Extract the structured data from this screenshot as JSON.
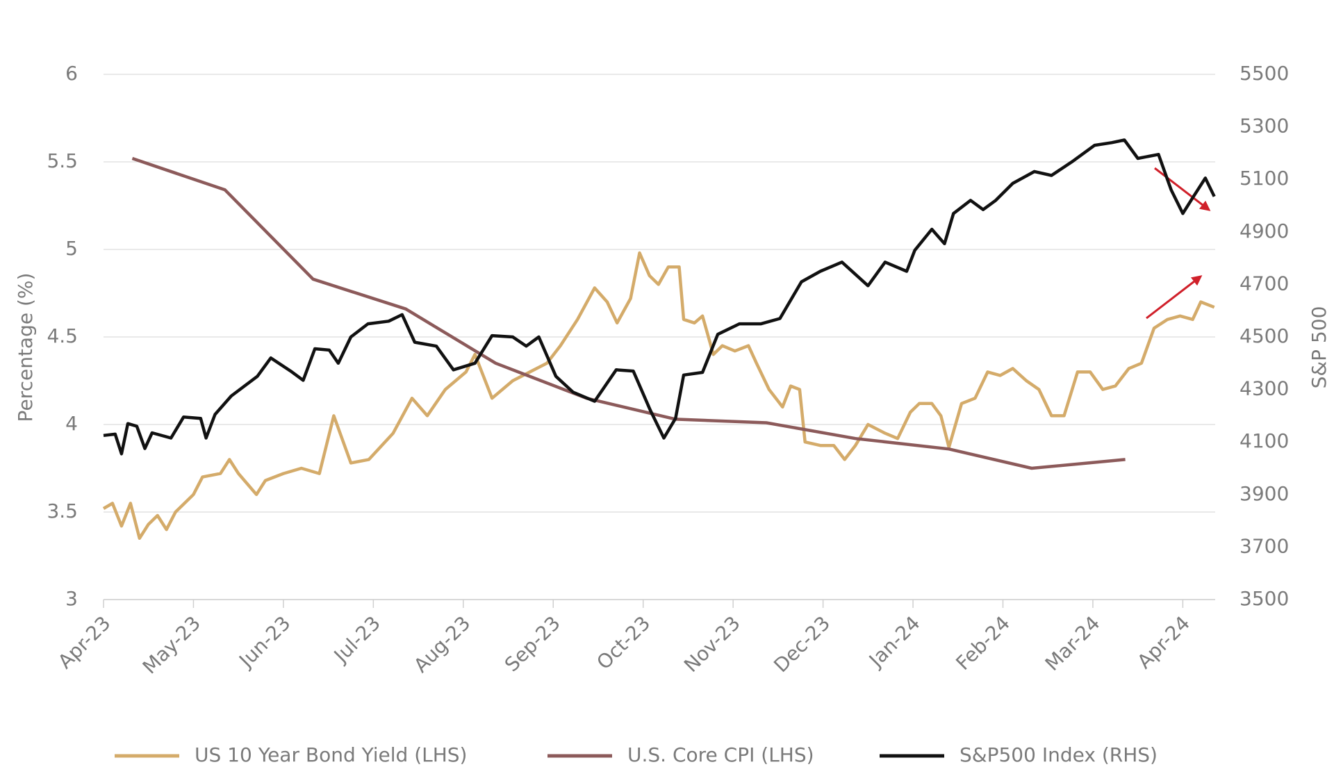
{
  "chart_data": {
    "type": "line",
    "ylabel": "Percentage (%)",
    "y2label": "S&P 500",
    "xlim": [
      0,
      12.36
    ],
    "xticks": [
      {
        "value": 0,
        "label": "Apr-23"
      },
      {
        "value": 1,
        "label": "May-23"
      },
      {
        "value": 2,
        "label": "Jun-23"
      },
      {
        "value": 3,
        "label": "Jul-23"
      },
      {
        "value": 4,
        "label": "Aug-23"
      },
      {
        "value": 5,
        "label": "Sep-23"
      },
      {
        "value": 6,
        "label": "Oct-23"
      },
      {
        "value": 7,
        "label": "Nov-23"
      },
      {
        "value": 8,
        "label": "Dec-23"
      },
      {
        "value": 9,
        "label": "Jan-24"
      },
      {
        "value": 10,
        "label": "Feb-24"
      },
      {
        "value": 11,
        "label": "Mar-24"
      },
      {
        "value": 12,
        "label": "Apr-24"
      }
    ],
    "ylim": [
      3,
      6
    ],
    "yticks": [
      3,
      3.5,
      4,
      4.5,
      5,
      5.5,
      6
    ],
    "y2lim": [
      3500,
      5500
    ],
    "y2ticks": [
      3500,
      3700,
      3900,
      4100,
      4300,
      4500,
      4700,
      4900,
      5100,
      5300,
      5500
    ],
    "grid": true,
    "legend": "bottom",
    "series": [
      {
        "name": "US 10 Year Bond Yield  (LHS)",
        "color": "#d4ab6a",
        "axis": "y",
        "x": [
          0,
          0.1,
          0.2,
          0.3,
          0.4,
          0.5,
          0.6,
          0.7,
          0.8,
          1.0,
          1.1,
          1.3,
          1.4,
          1.5,
          1.7,
          1.8,
          2.0,
          2.2,
          2.4,
          2.56,
          2.75,
          2.95,
          3.22,
          3.43,
          3.6,
          3.8,
          4.03,
          4.13,
          4.32,
          4.55,
          4.74,
          4.93,
          5.08,
          5.27,
          5.46,
          5.6,
          5.71,
          5.86,
          5.96,
          6.07,
          6.17,
          6.28,
          6.4,
          6.45,
          6.57,
          6.66,
          6.78,
          6.88,
          7.02,
          7.17,
          7.26,
          7.4,
          7.55,
          7.64,
          7.74,
          7.8,
          7.97,
          8.12,
          8.24,
          8.36,
          8.5,
          8.69,
          8.83,
          8.97,
          9.07,
          9.21,
          9.31,
          9.4,
          9.54,
          9.69,
          9.83,
          9.97,
          10.11,
          10.26,
          10.4,
          10.54,
          10.68,
          10.83,
          10.97,
          11.11,
          11.25,
          11.4,
          11.54,
          11.68,
          11.83,
          11.97,
          12.11,
          12.2,
          12.35
        ],
        "values": [
          3.52,
          3.55,
          3.42,
          3.55,
          3.35,
          3.43,
          3.48,
          3.4,
          3.5,
          3.6,
          3.7,
          3.72,
          3.8,
          3.72,
          3.6,
          3.68,
          3.72,
          3.75,
          3.72,
          4.05,
          3.78,
          3.8,
          3.95,
          4.15,
          4.05,
          4.2,
          4.3,
          4.4,
          4.15,
          4.25,
          4.3,
          4.35,
          4.45,
          4.6,
          4.78,
          4.7,
          4.58,
          4.72,
          4.98,
          4.85,
          4.8,
          4.9,
          4.9,
          4.6,
          4.58,
          4.62,
          4.4,
          4.45,
          4.42,
          4.45,
          4.35,
          4.2,
          4.1,
          4.22,
          4.2,
          3.9,
          3.88,
          3.88,
          3.8,
          3.88,
          4.0,
          3.95,
          3.92,
          4.07,
          4.12,
          4.12,
          4.05,
          3.87,
          4.12,
          4.15,
          4.3,
          4.28,
          4.32,
          4.25,
          4.2,
          4.05,
          4.05,
          4.3,
          4.3,
          4.2,
          4.22,
          4.32,
          4.35,
          4.55,
          4.6,
          4.62,
          4.6,
          4.7,
          4.67
        ]
      },
      {
        "name": "U.S. Core CPI  (LHS)",
        "color": "#8c5a5a",
        "axis": "y",
        "x": [
          0.32,
          1.35,
          2.33,
          3.36,
          4.36,
          5.37,
          6.36,
          7.37,
          8.36,
          9.4,
          10.32,
          11.36
        ],
        "values": [
          5.52,
          5.34,
          4.83,
          4.66,
          4.35,
          4.15,
          4.03,
          4.01,
          3.92,
          3.86,
          3.75,
          3.8
        ]
      },
      {
        "name": "S&P500 Index  (RHS)",
        "color": "#111111",
        "axis": "y2",
        "x": [
          0,
          0.13,
          0.2,
          0.27,
          0.37,
          0.46,
          0.54,
          0.75,
          0.89,
          1.08,
          1.14,
          1.24,
          1.42,
          1.71,
          1.86,
          2.08,
          2.22,
          2.35,
          2.51,
          2.61,
          2.75,
          2.94,
          3.17,
          3.32,
          3.46,
          3.7,
          3.89,
          4.13,
          4.32,
          4.55,
          4.7,
          4.84,
          5.03,
          5.22,
          5.46,
          5.7,
          5.89,
          6.08,
          6.23,
          6.36,
          6.45,
          6.66,
          6.83,
          7.07,
          7.31,
          7.52,
          7.76,
          7.97,
          8.21,
          8.5,
          8.69,
          8.93,
          9.02,
          9.21,
          9.35,
          9.45,
          9.64,
          9.78,
          9.92,
          10.11,
          10.35,
          10.54,
          10.78,
          11.02,
          11.21,
          11.35,
          11.5,
          11.73,
          11.87,
          12.0,
          12.11,
          12.25,
          12.35
        ],
        "values": [
          4125,
          4130,
          4055,
          4170,
          4160,
          4075,
          4135,
          4115,
          4195,
          4190,
          4115,
          4205,
          4275,
          4350,
          4420,
          4370,
          4335,
          4455,
          4450,
          4400,
          4500,
          4550,
          4560,
          4585,
          4480,
          4465,
          4375,
          4400,
          4505,
          4500,
          4465,
          4500,
          4350,
          4290,
          4255,
          4375,
          4370,
          4220,
          4115,
          4190,
          4355,
          4365,
          4510,
          4550,
          4550,
          4570,
          4710,
          4750,
          4785,
          4695,
          4785,
          4750,
          4830,
          4910,
          4855,
          4970,
          5020,
          4985,
          5020,
          5085,
          5130,
          5115,
          5170,
          5230,
          5240,
          5250,
          5180,
          5195,
          5060,
          4970,
          5030,
          5105,
          5035
        ]
      }
    ]
  }
}
